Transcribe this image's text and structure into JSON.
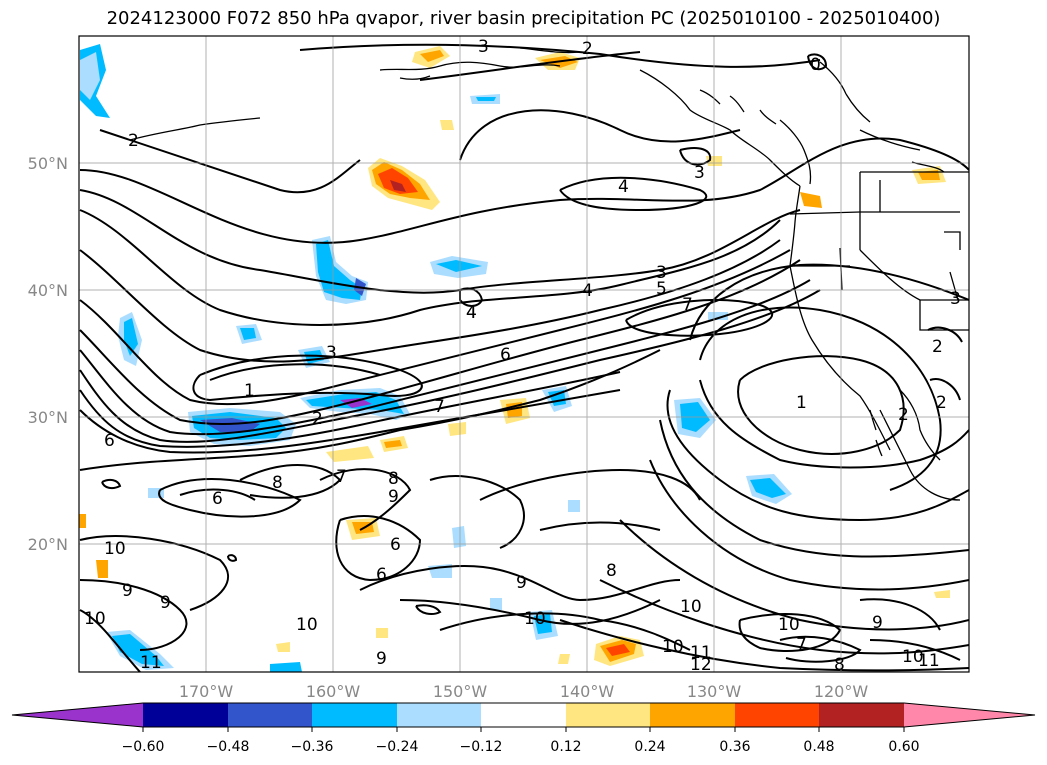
{
  "title": "2024123000 F072 850 hPa qvapor, river basin precipitation PC (2025010100 - 2025010400)",
  "map": {
    "lat_labels": [
      "50°N",
      "40°N",
      "30°N",
      "20°N"
    ],
    "lon_labels": [
      "170°W",
      "160°W",
      "150°W",
      "140°W",
      "130°W",
      "120°W"
    ]
  },
  "colorbar": {
    "tick_labels": [
      "−0.60",
      "−0.48",
      "−0.36",
      "−0.24",
      "−0.12",
      "0.12",
      "0.24",
      "0.36",
      "0.48",
      "0.60"
    ],
    "colors": [
      "#9933cc",
      "#000099",
      "#3355cc",
      "#00bbff",
      "#aaddff",
      "#ffffff",
      "#ffe680",
      "#ffa500",
      "#ff4400",
      "#b22222",
      "#ff88aa"
    ]
  },
  "contour_labels": [
    "3",
    "2",
    "0",
    "2",
    "4",
    "3",
    "3",
    "4",
    "5",
    "7",
    "4",
    "4",
    "3",
    "6",
    "1",
    "7",
    "2",
    "1",
    "2",
    "2",
    "6",
    "7",
    "8",
    "8",
    "9",
    "6",
    "6",
    "6",
    "10",
    "9",
    "9",
    "10",
    "10",
    "9",
    "8",
    "10",
    "10",
    "10",
    "9",
    "10",
    "11",
    "12",
    "7",
    "8",
    "10",
    "11",
    "9",
    "11",
    "3",
    "2"
  ]
}
